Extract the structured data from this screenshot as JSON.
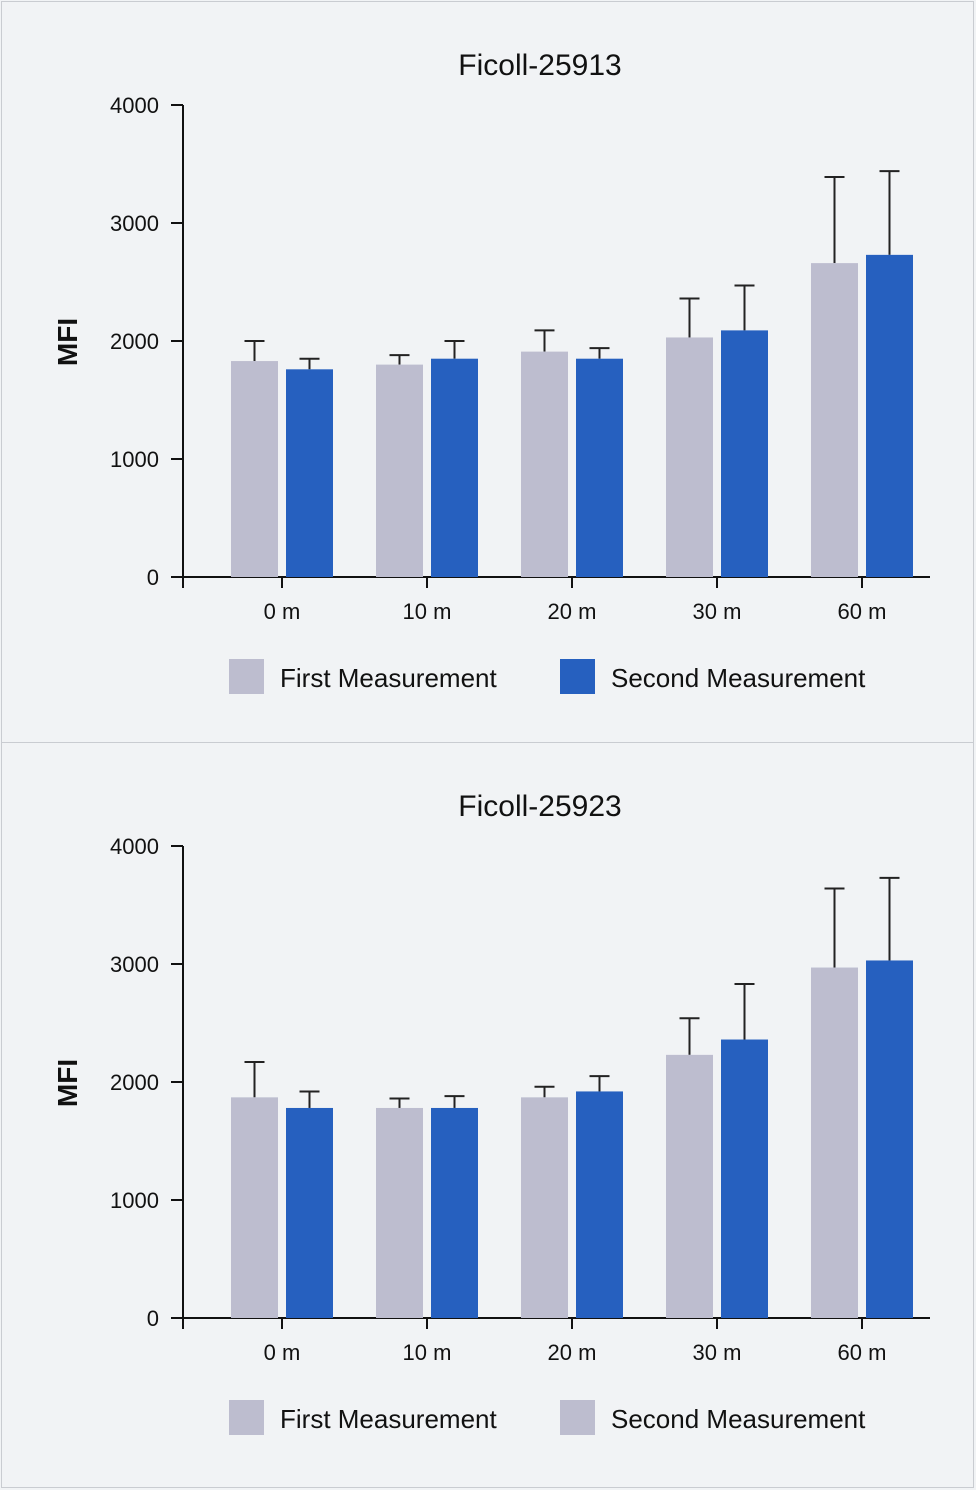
{
  "chart_data": [
    {
      "type": "bar",
      "title": "Ficoll-25913",
      "xlabel": "",
      "ylabel": "MFI",
      "ylim": [
        0,
        4000
      ],
      "yticks": [
        0,
        1000,
        2000,
        3000,
        4000
      ],
      "categories": [
        "0 m",
        "10 m",
        "20 m",
        "30 m",
        "60 m"
      ],
      "series": [
        {
          "name": "First Measurement",
          "color": "#bdbdcf",
          "values": [
            1830,
            1800,
            1910,
            2030,
            2660
          ],
          "errors": [
            170,
            80,
            180,
            330,
            730
          ]
        },
        {
          "name": "Second Measurement",
          "color": "#2660bf",
          "values": [
            1760,
            1850,
            1850,
            2090,
            2730
          ],
          "errors": [
            90,
            150,
            90,
            380,
            710
          ]
        }
      ],
      "legend": "bottom"
    },
    {
      "type": "bar",
      "title": "Ficoll-25923",
      "xlabel": "",
      "ylabel": "MFI",
      "ylim": [
        0,
        4000
      ],
      "yticks": [
        0,
        1000,
        2000,
        3000,
        4000
      ],
      "categories": [
        "0 m",
        "10 m",
        "20 m",
        "30 m",
        "60 m"
      ],
      "series": [
        {
          "name": "First Measurement",
          "color": "#bdbdcf",
          "values": [
            1870,
            1780,
            1870,
            2230,
            2970
          ],
          "errors": [
            300,
            80,
            90,
            310,
            670
          ]
        },
        {
          "name": "Second Measurement",
          "color": "#2660bf",
          "values": [
            1780,
            1780,
            1920,
            2360,
            3030
          ],
          "errors": [
            140,
            100,
            130,
            470,
            700
          ]
        }
      ],
      "legend": "bottom",
      "legend_swatch_colors": [
        "#bdbdcf",
        "#bdbdcf"
      ]
    }
  ]
}
